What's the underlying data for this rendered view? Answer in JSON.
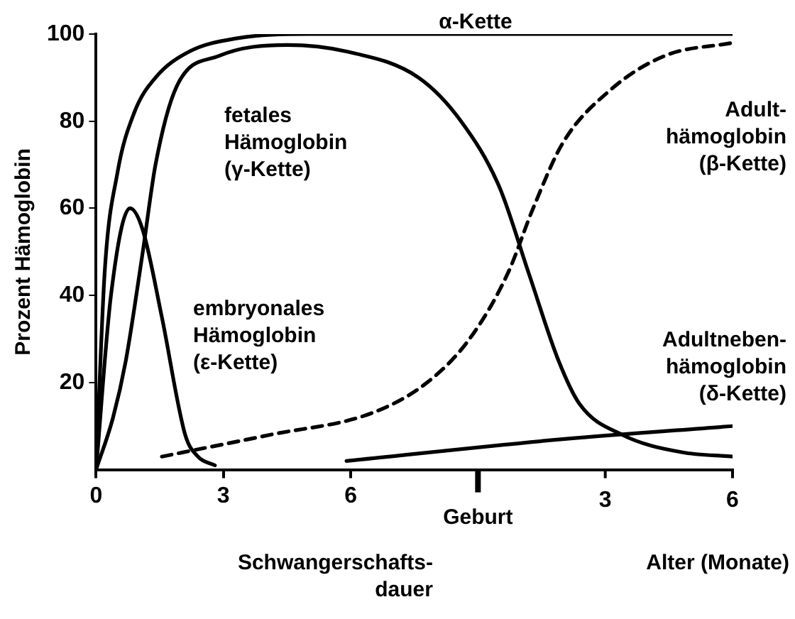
{
  "chart_data": {
    "type": "line",
    "xlabel": "Schwangerschafts-\ndauer",
    "ylabel": "Prozent Hämoglobin",
    "x2label": "Alter (Monate)",
    "xlim": [
      0,
      15
    ],
    "xticks": [
      0,
      3,
      6
    ],
    "x2lim": [
      -9,
      6
    ],
    "x2ticks": [
      3,
      6
    ],
    "ylim": [
      0,
      100
    ],
    "yticks": [
      20,
      40,
      60,
      80,
      100
    ],
    "grid": false,
    "legend": false,
    "marker": "none",
    "ref_lines": [
      {
        "axis": "x",
        "value": 9,
        "label": "Geburt"
      }
    ],
    "series": [
      {
        "name": "α-Kette",
        "color": "#000000",
        "x": [
          0,
          0.2,
          0.5,
          0.9,
          1.4,
          2.2,
          3.3,
          5,
          15
        ],
        "values": [
          0,
          45,
          68,
          82,
          90,
          96,
          99,
          100,
          100
        ]
      },
      {
        "name": "fetales\nHämoglobin\n(γ-Kette)",
        "color": "#000000",
        "x": [
          0,
          0.4,
          0.7,
          1.1,
          1.4,
          1.9,
          2.9,
          4.5,
          5.9,
          7.6,
          8.6,
          9.5,
          10.2,
          10.9,
          11.4,
          12.4,
          13.8,
          15
        ],
        "values": [
          0,
          12,
          25,
          50,
          70,
          88,
          95,
          97.5,
          96,
          90,
          80,
          65,
          45,
          25,
          15,
          8,
          4,
          3
        ]
      },
      {
        "name": "embryonales\nHämoglobin\n(ε-Kette)",
        "color": "#000000",
        "x": [
          0,
          0.35,
          0.8,
          1.1,
          1.55,
          2.1,
          2.4,
          2.8
        ],
        "values": [
          0,
          40,
          60,
          55,
          35,
          8,
          3,
          1
        ]
      },
      {
        "name": "Adult-\nhämoglobin\n(β-Kette)",
        "color": "#000000",
        "line_style": "dashed",
        "x": [
          1.55,
          4.1,
          6.5,
          7.8,
          8.8,
          9.7,
          10.3,
          11,
          12.1,
          13.4,
          15
        ],
        "values": [
          3,
          8,
          13,
          20,
          30,
          45,
          60,
          75,
          87,
          95,
          98
        ]
      },
      {
        "name": "Adultneben-\nhämoglobin\n(δ-Kette)",
        "color": "#000000",
        "x": [
          5.9,
          11,
          15
        ],
        "values": [
          2,
          7,
          10
        ]
      }
    ]
  }
}
